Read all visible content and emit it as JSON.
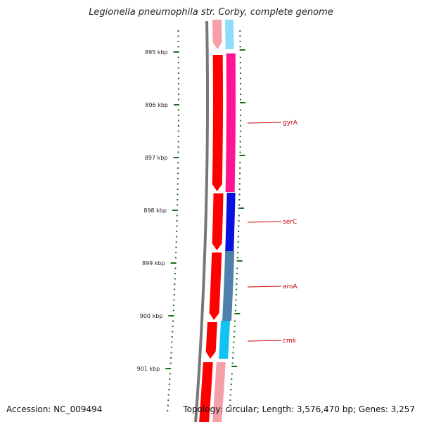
{
  "title": "Legionella pneumophila str. Corby, complete genome",
  "footer": {
    "accession": "Accession: NC_009494",
    "topology": "Topology: circular",
    "length": "Length: 3,576,470 bp",
    "genes": "Genes: 3,257"
  },
  "scale": {
    "ticks": [
      {
        "kbp": 895,
        "label": "895 kbp"
      },
      {
        "kbp": 896,
        "label": "896 kbp"
      },
      {
        "kbp": 897,
        "label": "897 kbp"
      },
      {
        "kbp": 898,
        "label": "898 kbp"
      },
      {
        "kbp": 899,
        "label": "899 kbp"
      },
      {
        "kbp": 900,
        "label": "900 kbp"
      },
      {
        "kbp": 901,
        "label": "901 kbp"
      }
    ]
  },
  "gene_labels": [
    {
      "name": "gyrA"
    },
    {
      "name": "serC"
    },
    {
      "name": "aroA"
    },
    {
      "name": "cmk"
    }
  ],
  "colors": {
    "tick": "#1a6b1a",
    "backbone": "#777777",
    "cds": "#ff0000",
    "cds_faded": "#f5a0a8",
    "gyrA": "#ff1493",
    "serC": "#0a10dd",
    "aroA": "#4f7fab",
    "cmk": "#12c2f4",
    "cyan_faded": "#8fdcf8",
    "label": "#cc0000"
  }
}
